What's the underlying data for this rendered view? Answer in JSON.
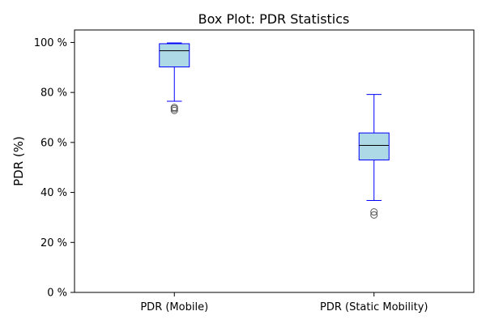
{
  "chart_data": {
    "type": "box",
    "title": "Box Plot: PDR Statistics",
    "xlabel": "",
    "ylabel": "PDR (%)",
    "ylim": [
      0,
      105
    ],
    "yticks": [
      0,
      20,
      40,
      60,
      80,
      100
    ],
    "ytick_labels": [
      "0 %",
      "20 %",
      "40 %",
      "60 %",
      "80 %",
      "100 %"
    ],
    "grid": false,
    "categories": [
      "PDR (Mobile)",
      "PDR (Static Mobility)"
    ],
    "boxes": [
      {
        "label": "PDR (Mobile)",
        "whisker_low": 76.5,
        "q1": 90.2,
        "median": 96.7,
        "q3": 99.5,
        "whisker_high": 99.8,
        "outliers": [
          74.0,
          73.5,
          72.8
        ]
      },
      {
        "label": "PDR (Static Mobility)",
        "whisker_low": 36.8,
        "q1": 53.0,
        "median": 58.8,
        "q3": 63.8,
        "whisker_high": 79.2,
        "outliers": [
          32.2,
          31.0
        ]
      }
    ]
  },
  "colors": {
    "box_fill": "#add8e6",
    "box_edge": "#0000ff",
    "median": "#000000",
    "outlier": "#555555",
    "axes": "#000000"
  }
}
